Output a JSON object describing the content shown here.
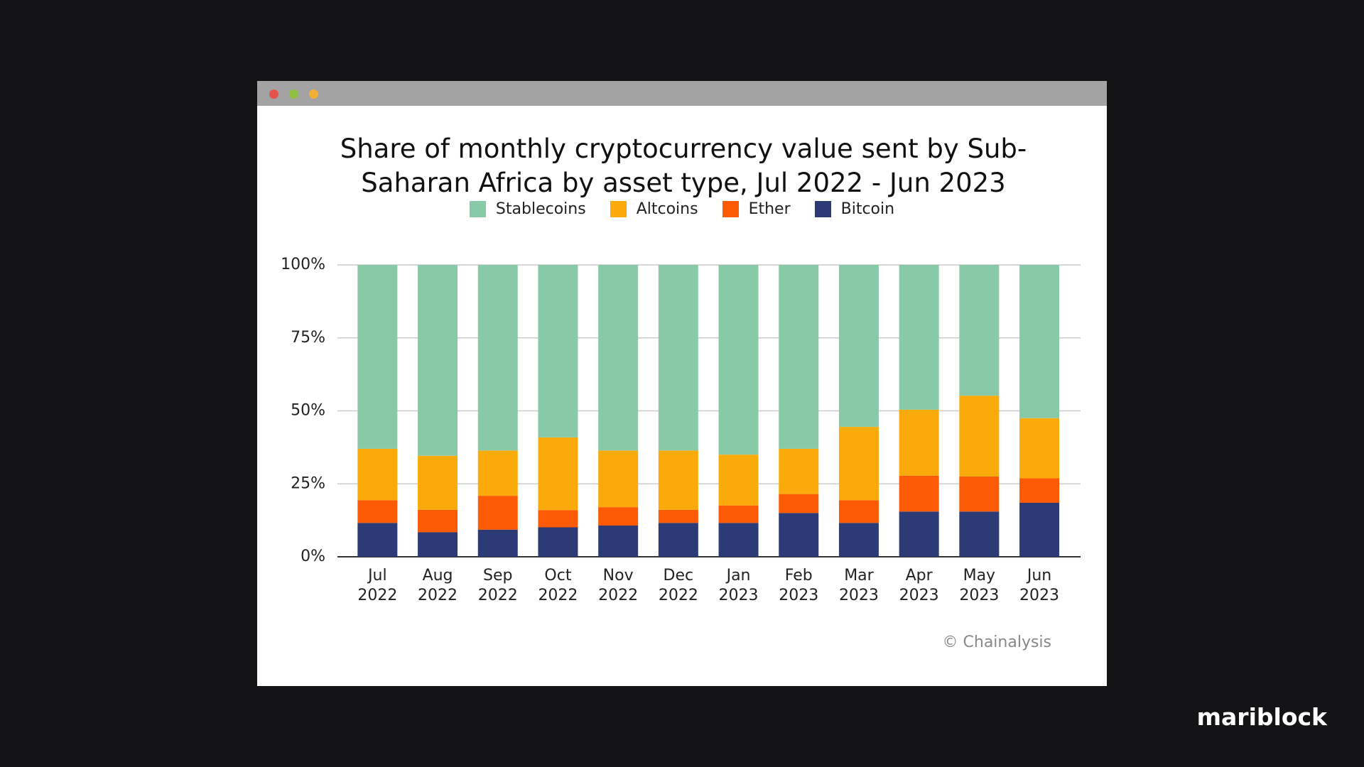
{
  "chart_data": {
    "type": "stacked_bar",
    "title": "Share of monthly cryptocurrency value sent by Sub-Saharan Africa by asset type, Jul 2022 - Jun 2023",
    "categories": [
      "Jul 2022",
      "Aug 2022",
      "Sep 2022",
      "Oct 2022",
      "Nov 2022",
      "Dec 2022",
      "Jan 2023",
      "Feb 2023",
      "Mar 2023",
      "Apr 2023",
      "May 2023",
      "Jun 2023"
    ],
    "series": [
      {
        "name": "Bitcoin",
        "color": "#2c3a75",
        "values": [
          11.6,
          8.4,
          9.3,
          10.1,
          10.7,
          11.6,
          11.6,
          15,
          11.6,
          15.5,
          15.5,
          18.5
        ]
      },
      {
        "name": "Ether",
        "color": "#fc5a05",
        "values": [
          7.8,
          7.7,
          11.6,
          5.9,
          6.3,
          4.5,
          6,
          6.5,
          7.8,
          12.3,
          12,
          8.4
        ]
      },
      {
        "name": "Altcoins",
        "color": "#fbaa0c",
        "values": [
          17.6,
          18.5,
          15.5,
          24.9,
          19.4,
          20.3,
          17.4,
          15.5,
          25.1,
          22.6,
          27.7,
          20.6
        ]
      },
      {
        "name": "Stablecoins",
        "color": "#88c9a8",
        "values": [
          63,
          65.4,
          63.6,
          59.1,
          63.6,
          63.6,
          65,
          63,
          55.5,
          49.6,
          44.8,
          52.5
        ]
      }
    ],
    "ylim": [
      0,
      100
    ],
    "yticks": [
      {
        "value": 0,
        "label": "0%"
      },
      {
        "value": 25,
        "label": "25%"
      },
      {
        "value": 50,
        "label": "50%"
      },
      {
        "value": 75,
        "label": "75%"
      },
      {
        "value": 100,
        "label": "100%"
      }
    ],
    "grid": true,
    "legend": "top",
    "source": "© Chainalysis"
  },
  "brand": "mariblock"
}
